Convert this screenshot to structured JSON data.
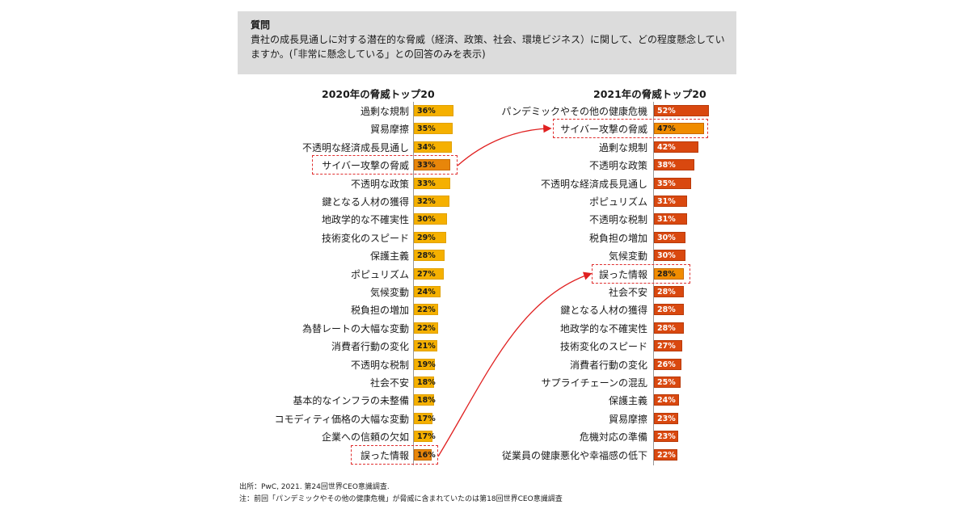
{
  "question": {
    "title": "質問",
    "text": "貴社の成長見通しに対する潜在的な脅威（経済、政策、社会、環境ビジネス）に関して、どの程度懸念していますか。(「非常に懸念している」との回答のみを表示)"
  },
  "chart_data": [
    {
      "type": "bar",
      "orientation": "horizontal",
      "title": "2020年の脅威トップ20",
      "categories": [
        "過剰な規制",
        "貿易摩擦",
        "不透明な経済成長見通し",
        "サイバー攻撃の脅威",
        "不透明な政策",
        "鍵となる人材の獲得",
        "地政学的な不確実性",
        "技術変化のスピード",
        "保護主義",
        "ポピュリズム",
        "気候変動",
        "税負担の増加",
        "為替レートの大幅な変動",
        "消費者行動の変化",
        "不透明な税制",
        "社会不安",
        "基本的なインフラの未整備",
        "コモディティ価格の大幅な変動",
        "企業への信頼の欠如",
        "誤った情報"
      ],
      "values": [
        36,
        35,
        34,
        33,
        33,
        32,
        30,
        29,
        28,
        27,
        24,
        22,
        22,
        21,
        19,
        18,
        18,
        17,
        17,
        16
      ],
      "value_labels": [
        "36%",
        "35%",
        "34%",
        "33%",
        "33%",
        "32%",
        "30%",
        "29%",
        "28%",
        "27%",
        "24%",
        "22%",
        "22%",
        "21%",
        "19%",
        "18%",
        "18%",
        "17%",
        "17%",
        "16%"
      ],
      "highlighted": [
        "サイバー攻撃の脅威",
        "誤った情報"
      ],
      "unit": "%",
      "bar_color": "#f5b000",
      "highlight_color": "#e8860a"
    },
    {
      "type": "bar",
      "orientation": "horizontal",
      "title": "2021年の脅威トップ20",
      "categories": [
        "パンデミックやその他の健康危機",
        "サイバー攻撃の脅威",
        "過剰な規制",
        "不透明な政策",
        "不透明な経済成長見通し",
        "ポピュリズム",
        "不透明な税制",
        "税負担の増加",
        "気候変動",
        "誤った情報",
        "社会不安",
        "鍵となる人材の獲得",
        "地政学的な不確実性",
        "技術変化のスピード",
        "消費者行動の変化",
        "サプライチェーンの混乱",
        "保護主義",
        "貿易摩擦",
        "危機対応の準備",
        "従業員の健康悪化や幸福感の低下"
      ],
      "values": [
        52,
        47,
        42,
        38,
        35,
        31,
        31,
        30,
        30,
        28,
        28,
        28,
        28,
        27,
        26,
        25,
        24,
        23,
        23,
        22
      ],
      "value_labels": [
        "52%",
        "47%",
        "42%",
        "38%",
        "35%",
        "31%",
        "31%",
        "30%",
        "30%",
        "28%",
        "28%",
        "28%",
        "28%",
        "27%",
        "26%",
        "25%",
        "24%",
        "23%",
        "23%",
        "22%"
      ],
      "highlighted": [
        "サイバー攻撃の脅威",
        "誤った情報"
      ],
      "unit": "%",
      "bar_color": "#d9480f",
      "highlight_color": "#f08c00"
    }
  ],
  "annotations": [
    {
      "from": "2020: サイバー攻撃の脅威",
      "to": "2021: サイバー攻撃の脅威"
    },
    {
      "from": "2020: 誤った情報",
      "to": "2021: 誤った情報"
    }
  ],
  "footnotes": {
    "source": "出所：PwC, 2021. 第24回世界CEO意識調査.",
    "note": "注：前回「パンデミックやその他の健康危機」が脅威に含まれていたのは第18回世界CEO意識調査"
  },
  "colors": {
    "arrow": "#e02020",
    "highlight_border": "#e03030",
    "question_bg": "#dcdcdc"
  }
}
